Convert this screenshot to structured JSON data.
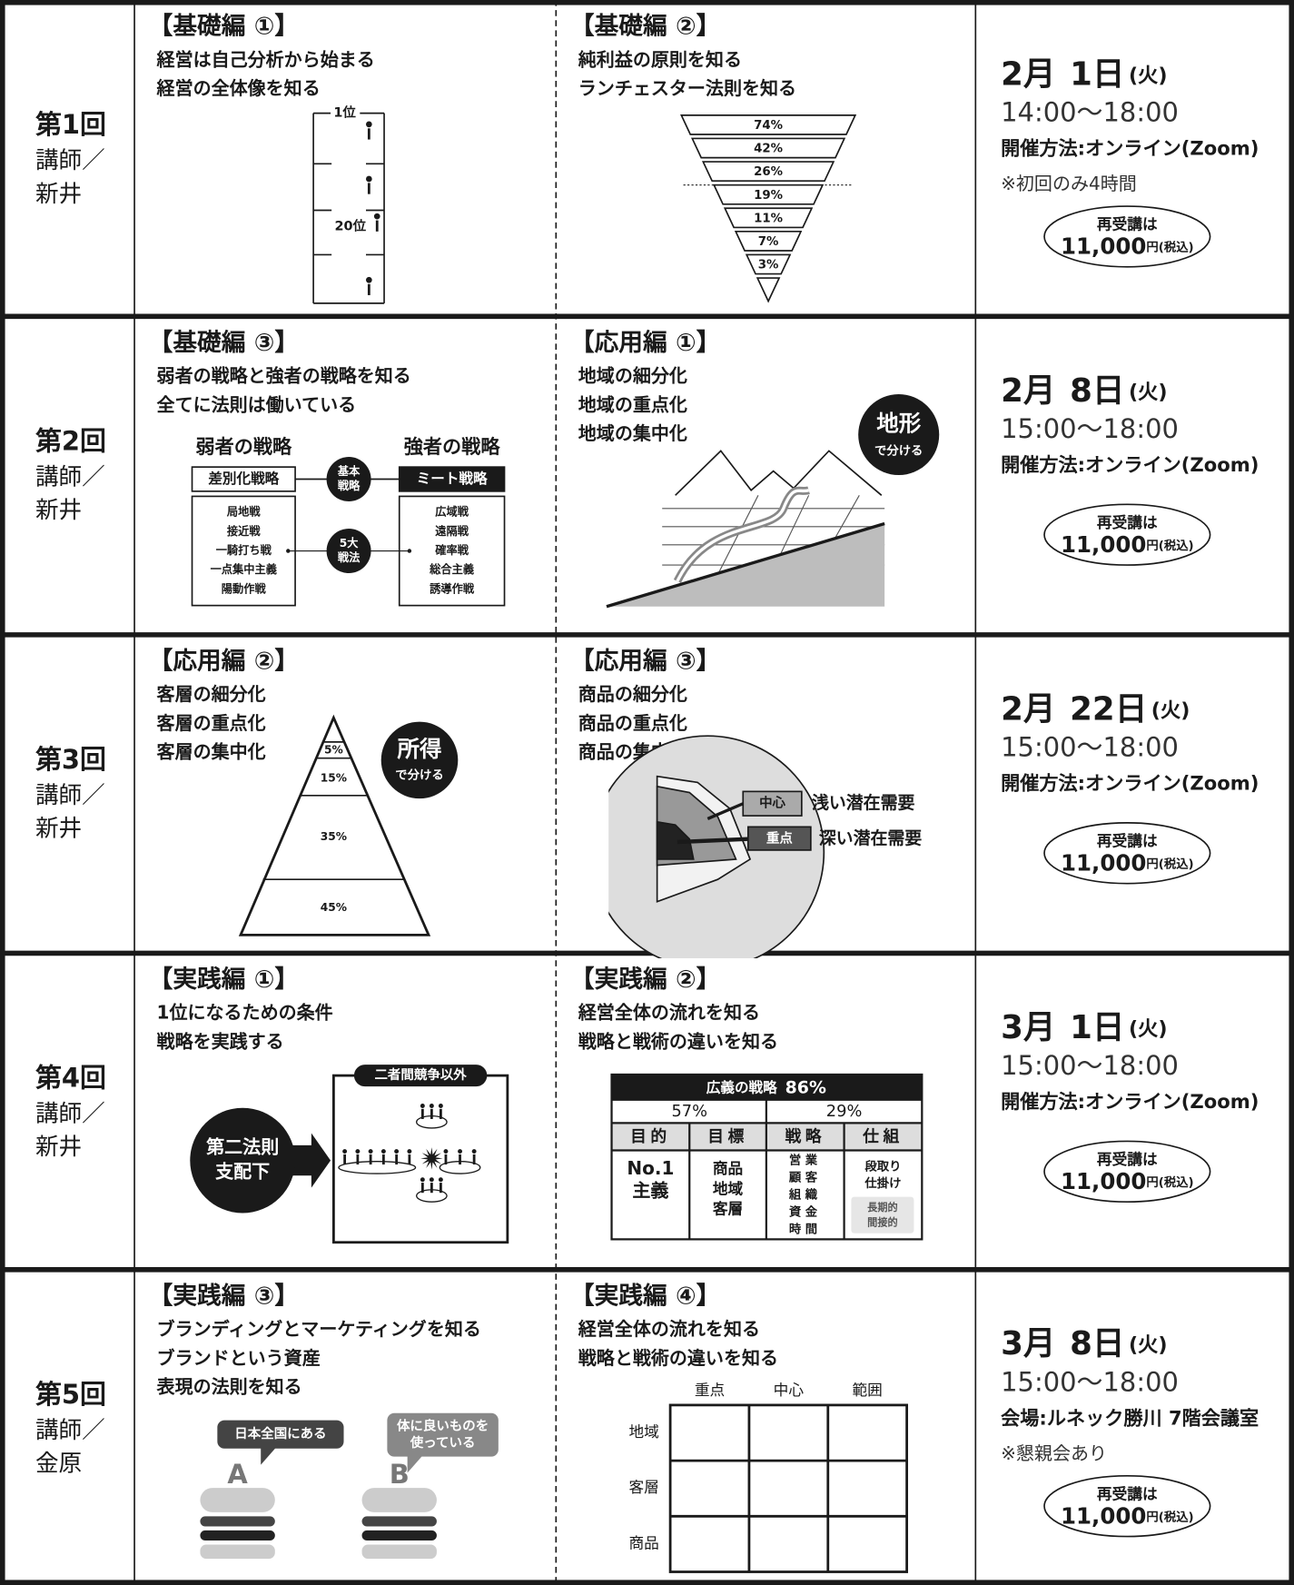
{
  "sessions": [
    {
      "number": "第1回",
      "instructor_label": "講師／",
      "instructor": "新井",
      "modules": [
        {
          "title": "【基礎編 ①】",
          "lines": [
            "経営は自己分析から始まる",
            "経営の全体像を知る"
          ],
          "figure": {
            "kind": "ranking",
            "top_label": "1位",
            "mid_label": "20位"
          }
        },
        {
          "title": "【基礎編 ②】",
          "lines": [
            "純利益の原則を知る",
            "ランチェスター法則を知る"
          ],
          "figure": {
            "kind": "inverted-pyramid",
            "levels": [
              "74%",
              "42%",
              "26%",
              "19%",
              "11%",
              "7%",
              "3%"
            ]
          }
        }
      ],
      "schedule": {
        "month": "2月",
        "day": "1日",
        "weekday": "(火)",
        "time": "14:00〜18:00",
        "venue": "開催方法:オンライン(Zoom)",
        "note": "※初回のみ4時間",
        "retake_label": "再受講は",
        "retake_price": "11,000",
        "retake_unit": "円(税込)"
      }
    },
    {
      "number": "第2回",
      "instructor_label": "講師／",
      "instructor": "新井",
      "modules": [
        {
          "title": "【基礎編 ③】",
          "lines": [
            "弱者の戦略と強者の戦略を知る",
            "全てに法則は働いている"
          ],
          "figure": {
            "kind": "strategy",
            "weak_title": "弱者の戦略",
            "strong_title": "強者の戦略",
            "weak_basic": "差別化戦略",
            "strong_basic": "ミート戦略",
            "basic_label": [
              "基本",
              "戦略"
            ],
            "tactics_label": [
              "5大",
              "戦法"
            ],
            "weak_tactics": [
              "局地戦",
              "接近戦",
              "一騎打ち戦",
              "一点集中主義",
              "陽動作戦"
            ],
            "strong_tactics": [
              "広域戦",
              "遠隔戦",
              "確率戦",
              "総合主義",
              "誘導作戦"
            ]
          }
        },
        {
          "title": "【応用編 ①】",
          "lines": [
            "地域の細分化",
            "地域の重点化",
            "地域の集中化"
          ],
          "figure": {
            "kind": "terrain",
            "badge": [
              "地形",
              "で分ける"
            ]
          }
        }
      ],
      "schedule": {
        "month": "2月",
        "day": "8日",
        "weekday": "(火)",
        "time": "15:00〜18:00",
        "venue": "開催方法:オンライン(Zoom)",
        "retake_label": "再受講は",
        "retake_price": "11,000",
        "retake_unit": "円(税込)"
      }
    },
    {
      "number": "第3回",
      "instructor_label": "講師／",
      "instructor": "新井",
      "modules": [
        {
          "title": "【応用編 ②】",
          "lines": [
            "客層の細分化",
            "客層の重点化",
            "客層の集中化"
          ],
          "figure": {
            "kind": "pyramid",
            "levels": [
              "5%",
              "15%",
              "35%",
              "45%"
            ],
            "badge": [
              "所得",
              "で分ける"
            ]
          }
        },
        {
          "title": "【応用編 ③】",
          "lines": [
            "商品の細分化",
            "商品の重点化",
            "商品の集中化"
          ],
          "figure": {
            "kind": "sphere",
            "core_tag": "中心",
            "core_text": "浅い潜在需要",
            "focus_tag": "重点",
            "focus_text": "深い潜在需要"
          }
        }
      ],
      "schedule": {
        "month": "2月",
        "day": "22日",
        "weekday": "(火)",
        "time": "15:00〜18:00",
        "venue": "開催方法:オンライン(Zoom)",
        "retake_label": "再受講は",
        "retake_price": "11,000",
        "retake_unit": "円(税込)"
      }
    },
    {
      "number": "第4回",
      "instructor_label": "講師／",
      "instructor": "新井",
      "modules": [
        {
          "title": "【実践編 ①】",
          "lines": [
            "1位になるための条件",
            "戦略を実践する"
          ],
          "figure": {
            "kind": "second-law",
            "circle": [
              "第二法則",
              "支配下"
            ],
            "box_title": "二者間競争以外"
          }
        },
        {
          "title": "【実践編 ②】",
          "lines": [
            "経営全体の流れを知る",
            "戦略と戦術の違いを知る"
          ],
          "figure": {
            "kind": "strategy-table",
            "heading": "広義の戦略",
            "heading_share": "86%",
            "shares": [
              "57%",
              "29%"
            ],
            "headers": [
              "目的",
              "目標",
              "戦略",
              "仕組"
            ],
            "cells": [
              [
                "No.1",
                "主義"
              ],
              [
                "商品",
                "地域",
                "客層"
              ],
              [
                "営業",
                "顧客",
                "組織",
                "資金",
                "時間"
              ],
              [
                "段取り",
                "仕掛け"
              ]
            ],
            "note": [
              "長期的",
              "間接的"
            ]
          }
        }
      ],
      "schedule": {
        "month": "3月",
        "day": "1日",
        "weekday": "(火)",
        "time": "15:00〜18:00",
        "venue": "開催方法:オンライン(Zoom)",
        "retake_label": "再受講は",
        "retake_price": "11,000",
        "retake_unit": "円(税込)"
      }
    },
    {
      "number": "第5回",
      "instructor_label": "講師／",
      "instructor": "金原",
      "modules": [
        {
          "title": "【実践編 ③】",
          "lines": [
            "ブランディングとマーケティングを知る",
            "ブランドという資産",
            "表現の法則を知る"
          ],
          "figure": {
            "kind": "brands",
            "items": [
              {
                "bubble": [
                  "日本全国にある"
                ],
                "letter": "A"
              },
              {
                "bubble": [
                  "体に良いものを",
                  "使っている"
                ],
                "letter": "B"
              }
            ]
          }
        },
        {
          "title": "【実践編 ④】",
          "lines": [
            "経営全体の流れを知る",
            "戦略と戦術の違いを知る"
          ],
          "figure": {
            "kind": "matrix",
            "columns": [
              "重点",
              "中心",
              "範囲"
            ],
            "rows": [
              "地域",
              "客層",
              "商品"
            ]
          }
        }
      ],
      "schedule": {
        "month": "3月",
        "day": "8日",
        "weekday": "(火)",
        "time": "15:00〜18:00",
        "venue": "会場:ルネック勝川 7階会議室",
        "note": "※懇親会あり",
        "retake_label": "再受講は",
        "retake_price": "11,000",
        "retake_unit": "円(税込)"
      }
    }
  ]
}
